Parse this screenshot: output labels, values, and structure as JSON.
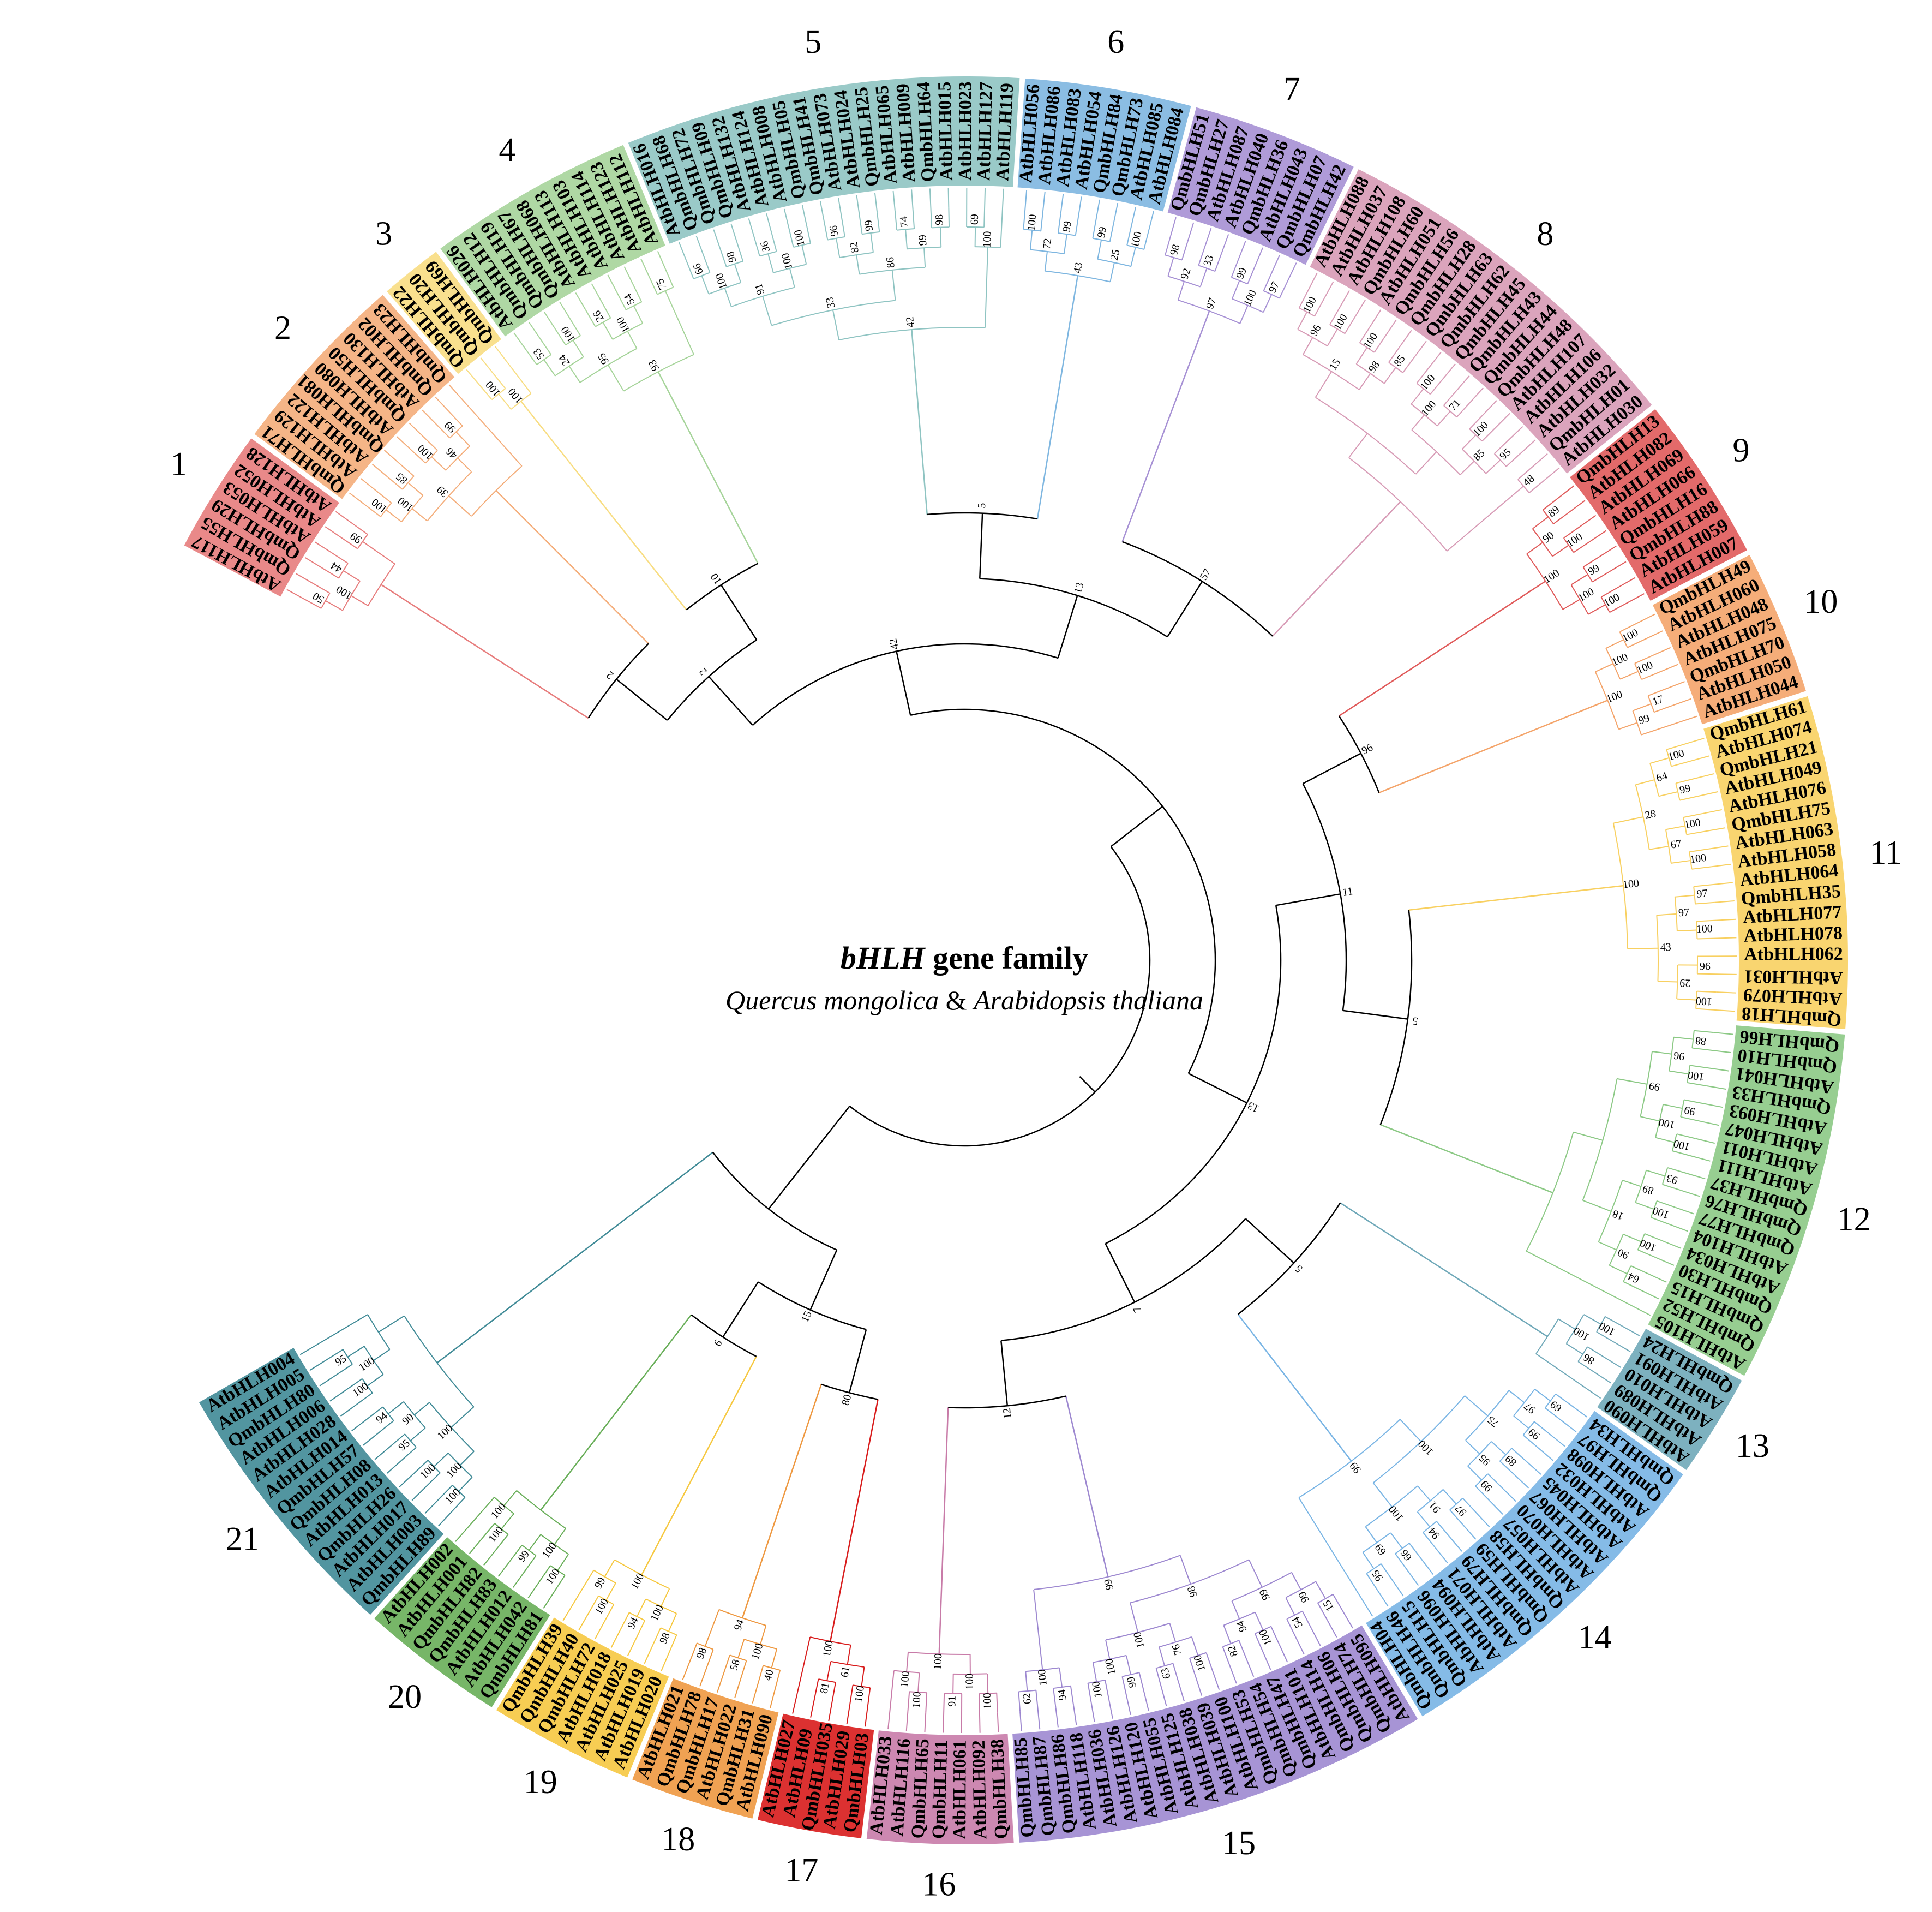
{
  "title": {
    "gene_italic": "bHLH",
    "gene_rest": " gene family",
    "species_1": "Quercus mongolica",
    "species_join": " & ",
    "species_2": "Arabidopsis thaliana"
  },
  "clades": [
    {
      "id": "1",
      "color": "#e77c7c",
      "members": [
        "AtbHLH117",
        "QmbHLH55",
        "QmbHLH29",
        "AtbHLH053",
        "AtbHLH052",
        "AtbHLH128"
      ]
    },
    {
      "id": "2",
      "color": "#f4ad7a",
      "members": [
        "QmbHLH71",
        "AtbHLH129",
        "AtbHLH122",
        "QmbHLH081",
        "AtbHLH080",
        "QmbHLH50",
        "AtbHLH130",
        "QmbHLH02",
        "QmbHLH23"
      ]
    },
    {
      "id": "3",
      "color": "#f8dd82",
      "members": [
        "QmbHLH22",
        "QmbHLH20",
        "QmbHLH69"
      ]
    },
    {
      "id": "4",
      "color": "#a6d49a",
      "members": [
        "AtbHLH026",
        "QmbHLH12",
        "QmbHLH19",
        "QmbHLH67",
        "AtbHLH068",
        "AtbHLH113",
        "AtbHLH103",
        "AtbHLH114",
        "AtbHLH123",
        "AtbHLH112"
      ]
    },
    {
      "id": "5",
      "color": "#8fc4c2",
      "members": [
        "AtbHLH016",
        "QmbHLH68",
        "QmbHLH72",
        "QmbHLH09",
        "AtbHLH132",
        "AtbHLH124",
        "AtbHLH008",
        "QmbHLH05",
        "QmbHLH41",
        "AtbHLH073",
        "AtbHLH024",
        "QmbHLH25",
        "AtbHLH065",
        "AtbHLH009",
        "QmbHLH64",
        "AtbHLH015",
        "AtbHLH023",
        "AtbHLH127",
        "AtbHLH119"
      ]
    },
    {
      "id": "6",
      "color": "#7eb6e0",
      "members": [
        "AtbHLH056",
        "AtbHLH086",
        "AtbHLH083",
        "AtbHLH054",
        "QmbHLH84",
        "QmbHLH73",
        "AtbHLH085",
        "AtbHLH084"
      ]
    },
    {
      "id": "7",
      "color": "#a690d4",
      "members": [
        "QmbHLH51",
        "QmbHLH27",
        "AtbHLH087",
        "AtbHLH040",
        "QmbHLH36",
        "AtbHLH043",
        "QmbHLH07",
        "QmbHLH42"
      ]
    },
    {
      "id": "8",
      "color": "#d79ab5",
      "members": [
        "AtbHLH088",
        "AtbHLH037",
        "AtbHLH108",
        "QmbHLH60",
        "AtbHLH051",
        "QmbHLH56",
        "QmbHLH28",
        "QmbHLH63",
        "QmbHLH62",
        "QmbHLH45",
        "QmbHLH43",
        "QmbHLH44",
        "QmbHLH48",
        "AtbHLH107",
        "AtbHLH106",
        "AtbHLH032",
        "QmbHLH01",
        "AtbHLH030"
      ]
    },
    {
      "id": "9",
      "color": "#e05a5a",
      "members": [
        "QmbHLH13",
        "AtbHLH082",
        "AtbHLH069",
        "AtbHLH066",
        "QmbHLH16",
        "QmbHLH88",
        "AtbHLH059",
        "AtbHLH007"
      ]
    },
    {
      "id": "10",
      "color": "#f4a46a",
      "members": [
        "QmbHLH49",
        "AtbHLH060",
        "AtbHLH048",
        "AtbHLH075",
        "QmbHLH70",
        "AtbHLH050",
        "AtbHLH044"
      ]
    },
    {
      "id": "11",
      "color": "#f8d060",
      "members": [
        "QmbHLH61",
        "AtbHLH074",
        "QmbHLH21",
        "AtbHLH049",
        "AtbHLH076",
        "QmbHLH75",
        "AtbHLH063",
        "AtbHLH058",
        "AtbHLH064",
        "QmbHLH35",
        "AtbHLH077",
        "AtbHLH078",
        "AtbHLH062",
        "AtbHLH031",
        "AtbHLH079",
        "QmbHLH18"
      ]
    },
    {
      "id": "12",
      "color": "#8cc985",
      "members": [
        "QmbHLH66",
        "QmbHLH10",
        "AtbHLH041",
        "QmbHLH33",
        "AtbHLH093",
        "AtbHLH047",
        "AtbHLH011",
        "AtbHLH111",
        "QmbHLH37",
        "QmbHLH76",
        "QmbHLH77",
        "AtbHLH104",
        "AtbHLH034",
        "QmbHLH30",
        "QmbHLH15",
        "QmbHLH52",
        "AtbHLH105"
      ]
    },
    {
      "id": "13",
      "color": "#6fa8b8",
      "members": [
        "QmbHLH24",
        "AtbHLH091",
        "AtbHLH010",
        "AtbHLH089",
        "AtbHLH090"
      ]
    },
    {
      "id": "14",
      "color": "#78b4e4",
      "members": [
        "QmbHLH34",
        "QmbHLH97",
        "AtbHLH098",
        "AtbHLH032",
        "AtbHLH045",
        "AtbHLH067",
        "AtbHLH070",
        "AtbHLH057",
        "QmbHLH58",
        "QmbHLH59",
        "QmbHLH79",
        "AtbHLH071",
        "AtbHLH094",
        "AtbHLH096",
        "QmbHLH15",
        "QmbHLH46",
        "QmbHLH04"
      ]
    },
    {
      "id": "15",
      "color": "#9d88d0",
      "members": [
        "AtbHLH095",
        "QmbHLH74",
        "QmbHLH06",
        "QmbHLH14",
        "AtbHLH101",
        "QmbHLH47",
        "QmbHLH54",
        "QmbHLH53",
        "AtbHLH100",
        "AtbHLH039",
        "AtbHLH038",
        "AtbHLH125",
        "AtbHLH055",
        "AtbHLH120",
        "AtbHLH126",
        "AtbHLH036",
        "AtbHLH118",
        "QmbHLH86",
        "QmbHLH87",
        "QmbHLH85"
      ]
    },
    {
      "id": "16",
      "color": "#c87ba8",
      "members": [
        "QmbHLH38",
        "AtbHLH092",
        "AtbHLH061",
        "QmbHLH11",
        "QmbHLH65",
        "AtbHLH116",
        "AtbHLH033"
      ]
    },
    {
      "id": "17",
      "color": "#d81b1b",
      "members": [
        "QmbHLH03",
        "AtbHLH029",
        "QmbHLH035",
        "AtbHLH09",
        "AtbHLH027"
      ]
    },
    {
      "id": "18",
      "color": "#ee9840",
      "members": [
        "AtbHLH090",
        "QmbHLH31",
        "AtbHLH022",
        "QmbHLH17",
        "QmbHLH78",
        "AtbHLH021"
      ]
    },
    {
      "id": "19",
      "color": "#f6c840",
      "members": [
        "AtbHLH020",
        "AtbHLH019",
        "AtbHLH025",
        "AtbHLH018",
        "QmbHLH72",
        "QmbHLH40",
        "QmbHLH39"
      ]
    },
    {
      "id": "20",
      "color": "#68ae58",
      "members": [
        "QmbHLH81",
        "AtbHLH042",
        "AtbHLH012",
        "QmbHLH83",
        "QmbHLH82",
        "AtbHLH001",
        "AtbHLH002"
      ]
    },
    {
      "id": "21",
      "color": "#3f8a96",
      "members": [
        "QmbHLH89",
        "AtbHLH003",
        "AtbHLH017",
        "QmbHLH26",
        "AtbHLH013",
        "QmbHLH08",
        "QmbHLH57",
        "AtbHLH014",
        "AtbHLH028",
        "AtbHLH006",
        "QmbHLH80",
        "AtbHLH005",
        "AtbHLH004"
      ]
    }
  ],
  "backbone_support": [
    "2",
    "10",
    "5",
    "57",
    "96",
    "5",
    "5",
    "12",
    "80",
    "6",
    "2",
    "13",
    "11",
    "7",
    "15",
    "42",
    "13"
  ],
  "clade_support": [
    [
      "50",
      "44",
      "99",
      "100"
    ],
    [
      "100",
      "85",
      "100",
      "99",
      "100",
      "46",
      "39"
    ],
    [
      "100",
      "100"
    ],
    [
      "53",
      "100",
      "26",
      "54",
      "75",
      "24",
      "100",
      "95",
      "93"
    ],
    [
      "66",
      "98",
      "36",
      "100",
      "96",
      "99",
      "74",
      "98",
      "69",
      "100",
      "100",
      "82",
      "99",
      "100",
      "91",
      "86",
      "33",
      "42"
    ],
    [
      "100",
      "99",
      "99",
      "100",
      "72",
      "25",
      "43"
    ],
    [
      "98",
      "33",
      "99",
      "97",
      "92",
      "100",
      "97",
      "61",
      "62"
    ],
    [
      "100",
      "100",
      "100",
      "85",
      "100",
      "71",
      "100",
      "95",
      "48",
      "96",
      "98",
      "100",
      "85",
      "15"
    ],
    [
      "89",
      "100",
      "99",
      "100",
      "90",
      "100",
      "100"
    ],
    [
      "100",
      "100",
      "17",
      "100",
      "99",
      "100"
    ],
    [
      "100",
      "99",
      "100",
      "100",
      "97",
      "100",
      "96",
      "100",
      "64",
      "67",
      "97",
      "29",
      "28",
      "43",
      "100"
    ],
    [
      "88",
      "100",
      "99",
      "100",
      "93",
      "100",
      "100",
      "64",
      "96",
      "100",
      "89",
      "90",
      "99",
      "18"
    ],
    [
      "100",
      "86",
      "100"
    ],
    [
      "69",
      "99",
      "89",
      "99",
      "97",
      "94",
      "66",
      "95",
      "97",
      "95",
      "91",
      "69",
      "75",
      "100",
      "100",
      "99"
    ],
    [
      "15",
      "54",
      "100",
      "82",
      "100",
      "63",
      "99",
      "100",
      "94",
      "62",
      "99",
      "94",
      "76",
      "100",
      "100",
      "99",
      "100",
      "98",
      "99",
      "100"
    ],
    [
      "100",
      "91",
      "100",
      "100",
      "100",
      "100"
    ],
    [
      "100",
      "81",
      "61",
      "100"
    ],
    [
      "40",
      "58",
      "98",
      "100",
      "94",
      "15"
    ],
    [
      "98",
      "94",
      "100",
      "100",
      "99",
      "100"
    ],
    [
      "100",
      "99",
      "100",
      "100",
      "100"
    ],
    [
      "100",
      "100",
      "95",
      "94",
      "100",
      "95",
      "100",
      "90",
      "100",
      "100"
    ]
  ]
}
